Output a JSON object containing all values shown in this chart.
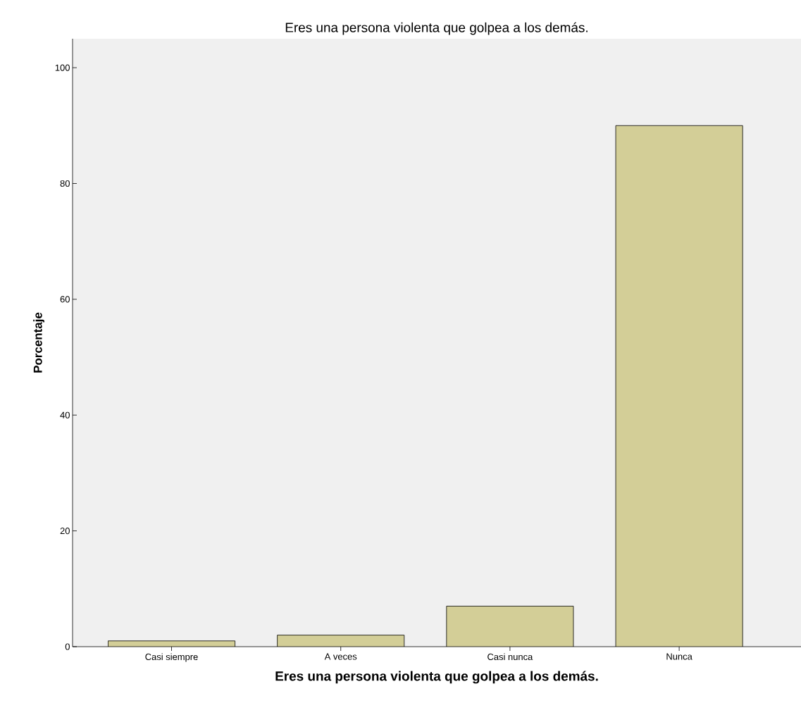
{
  "chart_data": {
    "type": "bar",
    "title": "Eres una persona violenta que golpea a los demás.",
    "xlabel": "Eres una persona violenta que golpea a los demás.",
    "ylabel": "Porcentaje",
    "categories": [
      "Casi siempre",
      "A veces",
      "Casi nunca",
      "Nunca"
    ],
    "values": [
      1,
      2,
      7,
      90
    ],
    "color": "#d3ce97",
    "ylim": [
      0,
      105
    ],
    "yticks": [
      0,
      20,
      40,
      60,
      80,
      100
    ],
    "grid": false
  }
}
